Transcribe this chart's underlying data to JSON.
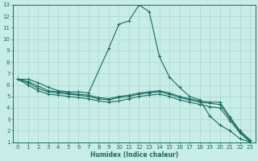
{
  "xlabel": "Humidex (Indice chaleur)",
  "bg_color": "#c8ece6",
  "grid_color": "#a8d8d0",
  "line_color": "#1a6b60",
  "xlim": [
    -0.5,
    23.5
  ],
  "ylim": [
    1,
    13
  ],
  "xticks": [
    0,
    1,
    2,
    3,
    4,
    5,
    6,
    7,
    8,
    9,
    10,
    11,
    12,
    13,
    14,
    15,
    16,
    17,
    18,
    19,
    20,
    21,
    22,
    23
  ],
  "yticks": [
    1,
    2,
    3,
    4,
    5,
    6,
    7,
    8,
    9,
    10,
    11,
    12,
    13
  ],
  "lines": [
    {
      "x": [
        0,
        1,
        2,
        3,
        4,
        5,
        6,
        7,
        9,
        10,
        11,
        12,
        13,
        14,
        15,
        16,
        17,
        18,
        19,
        20,
        21,
        22,
        23
      ],
      "y": [
        6.5,
        6.5,
        6.2,
        5.8,
        5.5,
        5.4,
        5.4,
        5.3,
        9.2,
        11.3,
        11.6,
        13.0,
        12.4,
        8.5,
        6.7,
        5.8,
        5.0,
        4.7,
        3.3,
        2.5,
        2.0,
        1.3,
        1.0
      ]
    },
    {
      "x": [
        0,
        1,
        2,
        3,
        4,
        5,
        6,
        7,
        8,
        9,
        10,
        11,
        12,
        13,
        14,
        15,
        16,
        17,
        18,
        19,
        20,
        21,
        22,
        23
      ],
      "y": [
        6.5,
        6.3,
        5.9,
        5.5,
        5.4,
        5.3,
        5.2,
        5.1,
        4.9,
        4.8,
        5.0,
        5.1,
        5.3,
        5.4,
        5.5,
        5.3,
        5.0,
        4.8,
        4.6,
        4.5,
        4.5,
        3.2,
        2.0,
        1.2
      ]
    },
    {
      "x": [
        0,
        1,
        2,
        3,
        4,
        5,
        6,
        7,
        8,
        9,
        10,
        11,
        12,
        13,
        14,
        15,
        16,
        17,
        18,
        19,
        20,
        21,
        22,
        23
      ],
      "y": [
        6.5,
        6.2,
        5.7,
        5.4,
        5.3,
        5.2,
        5.1,
        5.0,
        4.8,
        4.7,
        4.9,
        5.0,
        5.2,
        5.3,
        5.4,
        5.2,
        4.9,
        4.7,
        4.5,
        4.4,
        4.3,
        3.1,
        1.9,
        1.1
      ]
    },
    {
      "x": [
        0,
        1,
        2,
        3,
        4,
        5,
        6,
        7,
        8,
        9,
        10,
        11,
        12,
        13,
        14,
        15,
        16,
        17,
        18,
        19,
        20,
        21,
        22,
        23
      ],
      "y": [
        6.5,
        6.0,
        5.5,
        5.2,
        5.1,
        5.0,
        4.9,
        4.8,
        4.6,
        4.5,
        4.6,
        4.8,
        5.0,
        5.1,
        5.2,
        5.0,
        4.7,
        4.5,
        4.3,
        4.1,
        4.0,
        2.9,
        1.8,
        1.0
      ]
    }
  ]
}
